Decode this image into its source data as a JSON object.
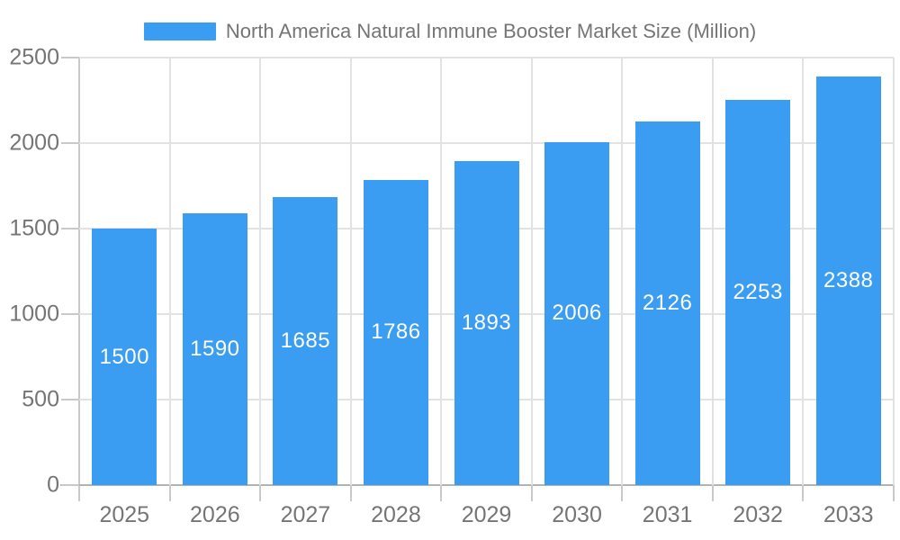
{
  "legend": {
    "label": "North America Natural Immune Booster Market Size (Million)"
  },
  "chart_data": {
    "type": "bar",
    "title": "North America Natural Immune Booster Market Size (Million)",
    "categories": [
      "2025",
      "2026",
      "2027",
      "2028",
      "2029",
      "2030",
      "2031",
      "2032",
      "2033"
    ],
    "values": [
      1500,
      1590,
      1685,
      1786,
      1893,
      2006,
      2126,
      2253,
      2388
    ],
    "xlabel": "",
    "ylabel": "",
    "ylim": [
      0,
      2500
    ],
    "yticks": [
      0,
      500,
      1000,
      1500,
      2000,
      2500
    ],
    "grid": true,
    "legend_position": "top",
    "value_labels": "inside-center"
  },
  "colors": {
    "bar": "#3B9DF2",
    "grid_line": "#E2E2E2",
    "axis_line": "#B3B3B3",
    "tick_line": "#C9C9C9",
    "axis_text": "#757575",
    "value_label_text": "#FFFFFF",
    "background": "#FFFFFF"
  }
}
